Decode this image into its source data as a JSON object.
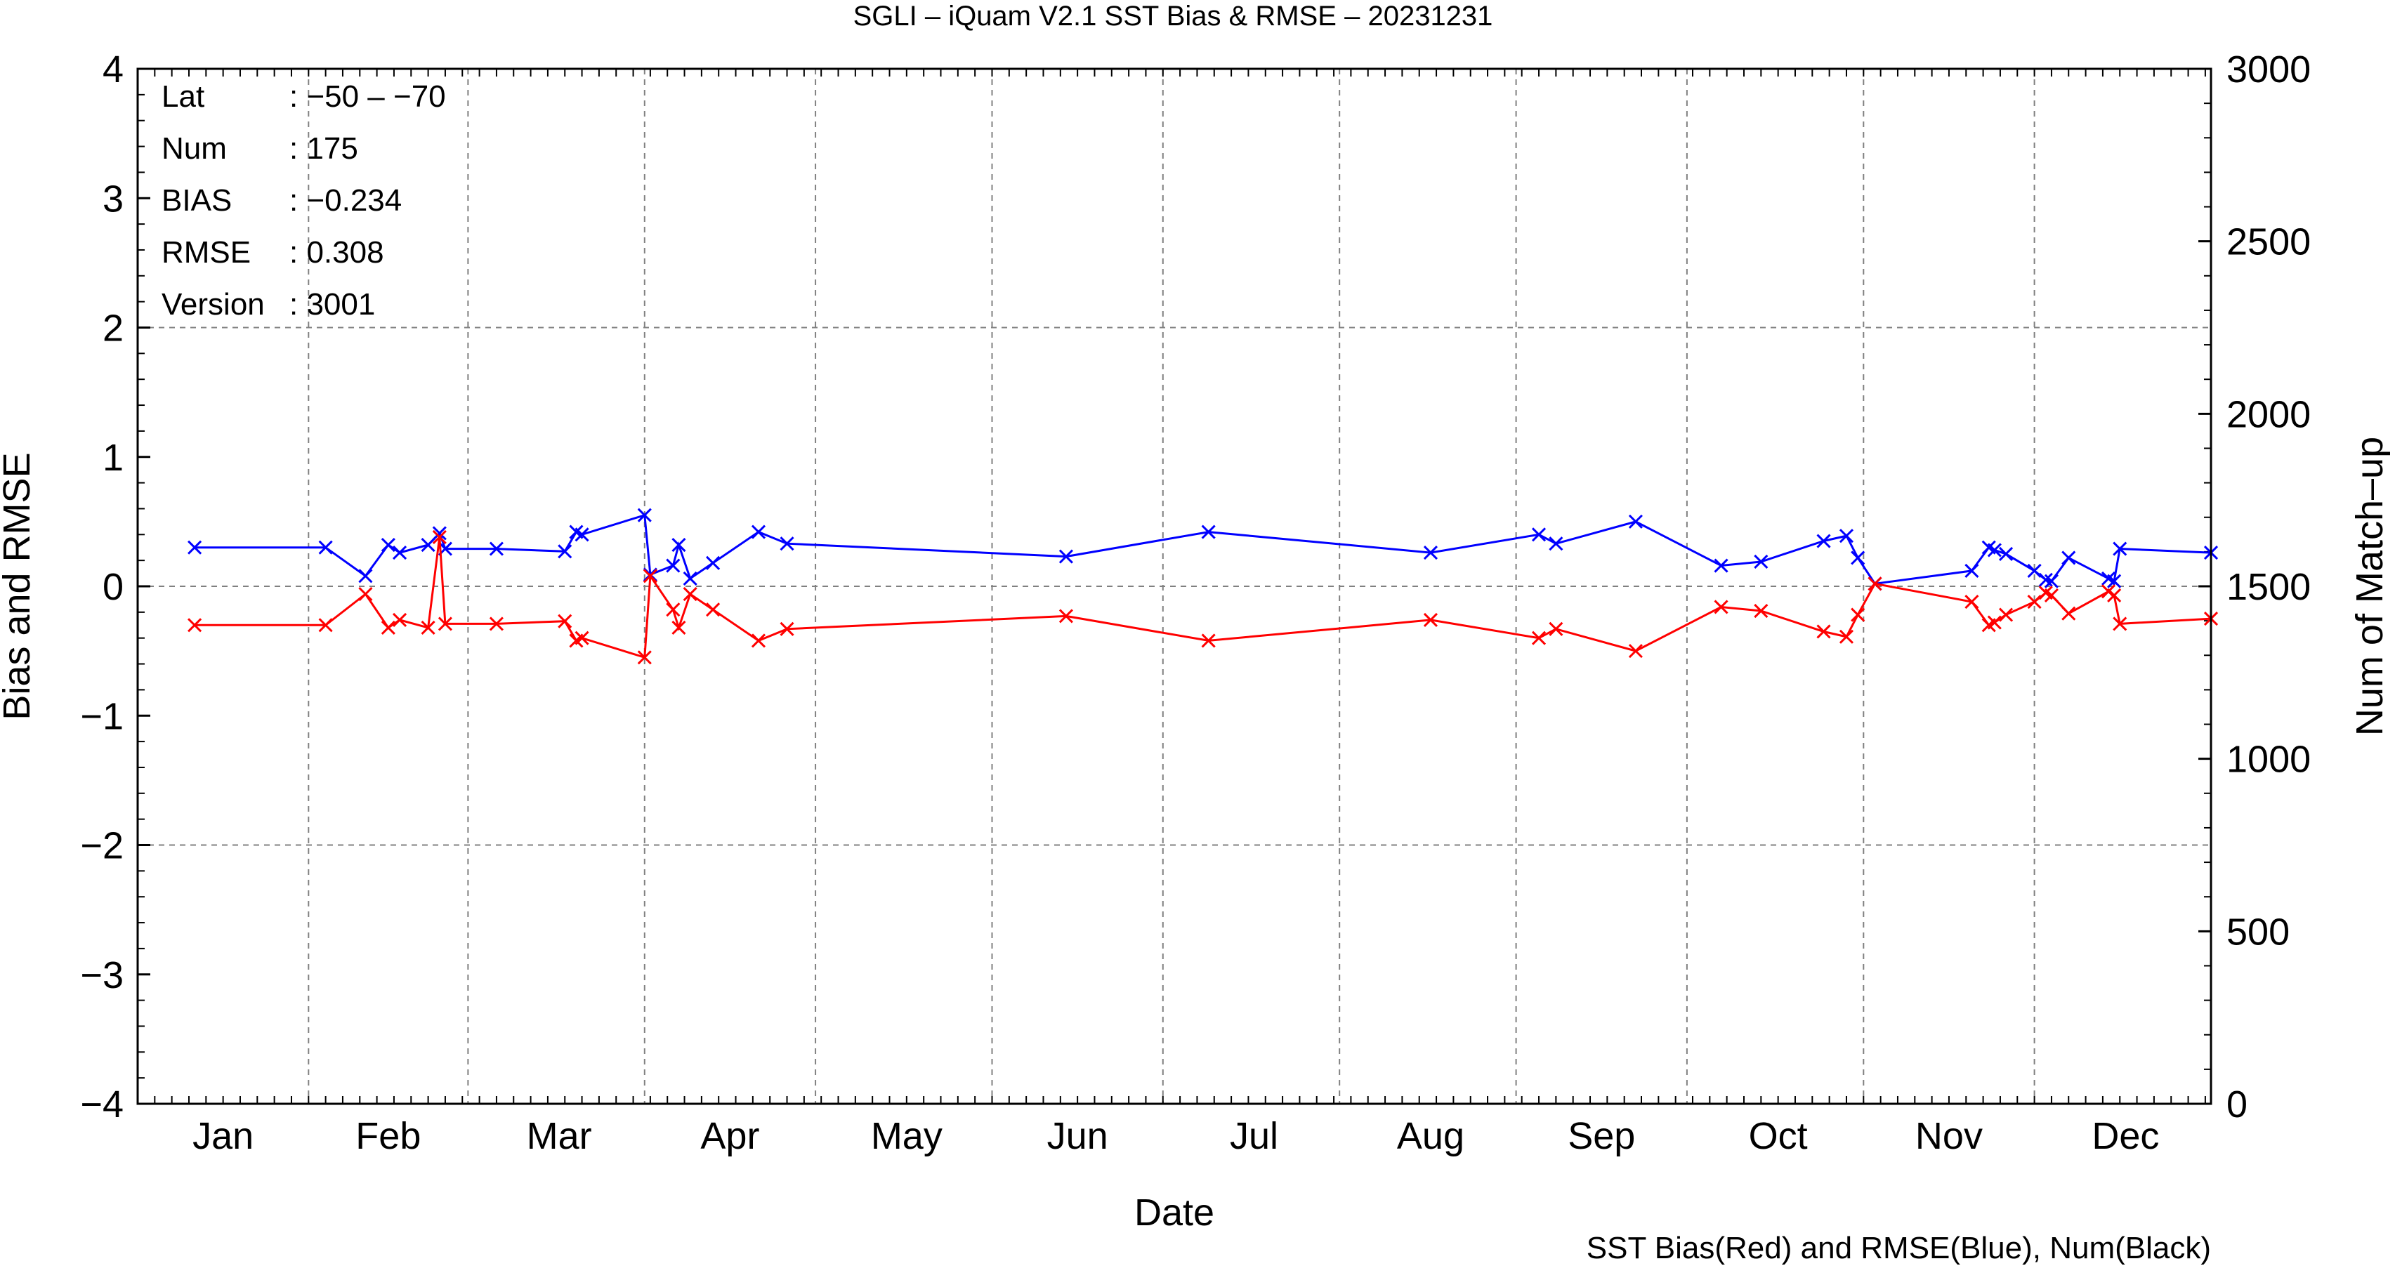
{
  "chart_data": {
    "type": "line",
    "title": "SGLI – iQuam V2.1 SST Bias & RMSE  – 20231231",
    "xlabel": "Date",
    "ylabel": "Bias and RMSE",
    "ylabel_right": "Num of Match–up",
    "caption": "SST Bias(Red) and RMSE(Blue), Num(Black)",
    "x_range": [
      "2023-01-01",
      "2023-12-31"
    ],
    "ylim": [
      -4,
      4
    ],
    "ylim_right": [
      0,
      3000
    ],
    "grid": true,
    "months": [
      "Jan",
      "Feb",
      "Mar",
      "Apr",
      "May",
      "Jun",
      "Jul",
      "Aug",
      "Sep",
      "Oct",
      "Nov",
      "Dec"
    ],
    "yticks_left": [
      "−4",
      "−3",
      "−2",
      "−1",
      "0",
      "1",
      "2",
      "3",
      "4"
    ],
    "yticks_right": [
      "0",
      "500",
      "1000",
      "1500",
      "2000",
      "2500",
      "3000"
    ],
    "info": [
      {
        "key": "Lat",
        "value": ": −50 – −70"
      },
      {
        "key": "Num",
        "value": ": 175"
      },
      {
        "key": "BIAS",
        "value": ": −0.234"
      },
      {
        "key": "RMSE",
        "value": ": 0.308"
      },
      {
        "key": "Version",
        "value": ": 3001"
      }
    ],
    "series": [
      {
        "label": "RMSE",
        "color": "#0000ff",
        "x": [
          "2023-01-11",
          "2023-02-03",
          "2023-02-10",
          "2023-02-14",
          "2023-02-16",
          "2023-02-21",
          "2023-02-23",
          "2023-02-24",
          "2023-03-05",
          "2023-03-17",
          "2023-03-19",
          "2023-03-20",
          "2023-03-31",
          "2023-04-01",
          "2023-04-05",
          "2023-04-06",
          "2023-04-08",
          "2023-04-12",
          "2023-04-20",
          "2023-04-25",
          "2023-06-13",
          "2023-07-08",
          "2023-08-16",
          "2023-09-04",
          "2023-09-07",
          "2023-09-21",
          "2023-10-06",
          "2023-10-13",
          "2023-10-24",
          "2023-10-28",
          "2023-10-30",
          "2023-11-02",
          "2023-11-19",
          "2023-11-22",
          "2023-11-23",
          "2023-11-25",
          "2023-11-30",
          "2023-12-02",
          "2023-12-03",
          "2023-12-06",
          "2023-12-13",
          "2023-12-14",
          "2023-12-15",
          "2023-12-31"
        ],
        "y": [
          0.3,
          0.3,
          0.08,
          0.32,
          0.26,
          0.32,
          0.41,
          0.29,
          0.29,
          0.27,
          0.42,
          0.4,
          0.55,
          0.09,
          0.16,
          0.32,
          0.06,
          0.18,
          0.42,
          0.33,
          0.23,
          0.42,
          0.26,
          0.4,
          0.33,
          0.5,
          0.16,
          0.19,
          0.35,
          0.39,
          0.22,
          0.02,
          0.12,
          0.3,
          0.28,
          0.25,
          0.12,
          0.05,
          0.04,
          0.22,
          0.06,
          0.04,
          0.29,
          0.26
        ]
      },
      {
        "label": "BIAS",
        "color": "#ff0000",
        "x": [
          "2023-01-11",
          "2023-02-03",
          "2023-02-10",
          "2023-02-14",
          "2023-02-16",
          "2023-02-21",
          "2023-02-23",
          "2023-02-24",
          "2023-03-05",
          "2023-03-17",
          "2023-03-19",
          "2023-03-20",
          "2023-03-31",
          "2023-04-01",
          "2023-04-05",
          "2023-04-06",
          "2023-04-08",
          "2023-04-12",
          "2023-04-20",
          "2023-04-25",
          "2023-06-13",
          "2023-07-08",
          "2023-08-16",
          "2023-09-04",
          "2023-09-07",
          "2023-09-21",
          "2023-10-06",
          "2023-10-13",
          "2023-10-24",
          "2023-10-28",
          "2023-10-30",
          "2023-11-02",
          "2023-11-19",
          "2023-11-22",
          "2023-11-23",
          "2023-11-25",
          "2023-11-30",
          "2023-12-02",
          "2023-12-03",
          "2023-12-06",
          "2023-12-13",
          "2023-12-14",
          "2023-12-15",
          "2023-12-31"
        ],
        "y": [
          -0.3,
          -0.3,
          -0.06,
          -0.32,
          -0.26,
          -0.32,
          0.38,
          -0.29,
          -0.29,
          -0.27,
          -0.42,
          -0.4,
          -0.55,
          0.08,
          -0.18,
          -0.32,
          -0.06,
          -0.18,
          -0.42,
          -0.33,
          -0.23,
          -0.42,
          -0.26,
          -0.4,
          -0.33,
          -0.5,
          -0.16,
          -0.19,
          -0.35,
          -0.39,
          -0.22,
          0.02,
          -0.12,
          -0.3,
          -0.28,
          -0.22,
          -0.12,
          -0.05,
          -0.07,
          -0.21,
          -0.04,
          -0.07,
          -0.29,
          -0.25
        ]
      }
    ]
  }
}
